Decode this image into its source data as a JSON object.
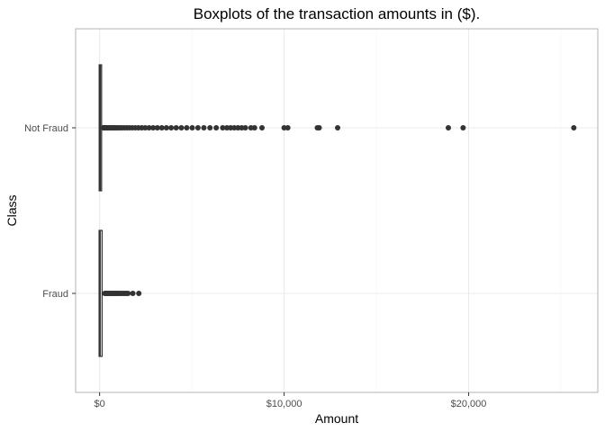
{
  "chart_data": {
    "type": "boxplot",
    "orientation": "horizontal",
    "title": "Boxplots of the transaction amounts in ($).",
    "xlabel": "Amount",
    "ylabel": "Class",
    "xlim": [
      -1300,
      27000
    ],
    "x_ticks": [
      {
        "value": 0,
        "label": "$0"
      },
      {
        "value": 10000,
        "label": "$10,000"
      },
      {
        "value": 20000,
        "label": "$20,000"
      }
    ],
    "x_minor_ticks": [
      5000,
      15000,
      25000
    ],
    "grid": true,
    "categories": [
      "Not Fraud",
      "Fraud"
    ],
    "series": [
      {
        "category": "Not Fraud",
        "min": 0,
        "q1": 5.6,
        "median": 22,
        "q3": 77,
        "whisker_high": 184,
        "outliers": [
          200,
          230,
          260,
          300,
          340,
          380,
          420,
          470,
          520,
          580,
          640,
          700,
          770,
          850,
          930,
          1020,
          1120,
          1230,
          1350,
          1480,
          1620,
          1770,
          1930,
          2100,
          2280,
          2470,
          2680,
          2900,
          3130,
          3370,
          3620,
          3880,
          4150,
          4430,
          4720,
          5020,
          5330,
          5650,
          5980,
          6320,
          6670,
          6900,
          7100,
          7300,
          7500,
          7700,
          7900,
          8200,
          8400,
          8800,
          10000,
          10200,
          11800,
          11900,
          12900,
          18900,
          19700,
          25700
        ]
      },
      {
        "category": "Fraud",
        "min": 0,
        "q1": 1,
        "median": 9.25,
        "q3": 105,
        "whisker_high": 262,
        "outliers": [
          280,
          320,
          360,
          400,
          450,
          500,
          560,
          620,
          680,
          740,
          800,
          870,
          940,
          1010,
          1090,
          1180,
          1270,
          1360,
          1450,
          1540,
          1800,
          2125
        ]
      }
    ],
    "colors": {
      "panel_border": "#b3b3b3",
      "grid_major": "#ebebeb",
      "grid_minor": "#f5f5f5",
      "box": "#333333",
      "outlier": "#333333"
    }
  }
}
